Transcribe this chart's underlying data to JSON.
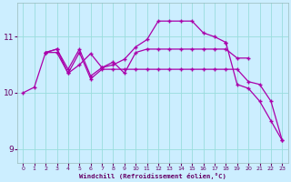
{
  "xlabel": "Windchill (Refroidissement éolien,°C)",
  "bg_color": "#cceeff",
  "grid_color": "#99dddd",
  "line_color": "#aa00aa",
  "xlim": [
    -0.5,
    23.5
  ],
  "ylim": [
    8.75,
    11.6
  ],
  "xticks": [
    0,
    1,
    2,
    3,
    4,
    5,
    6,
    7,
    8,
    9,
    10,
    11,
    12,
    13,
    14,
    15,
    16,
    17,
    18,
    19,
    20,
    21,
    22,
    23
  ],
  "yticks": [
    9,
    10,
    11
  ],
  "lineA_x": [
    0,
    1,
    2,
    3,
    4,
    5,
    6,
    7,
    8,
    9,
    10,
    11,
    12,
    13,
    14,
    15,
    16,
    17,
    18,
    19,
    20,
    21,
    22,
    23
  ],
  "lineA_y": [
    10.0,
    10.1,
    10.72,
    10.72,
    10.35,
    10.72,
    10.25,
    10.42,
    10.42,
    10.42,
    10.42,
    10.42,
    10.42,
    10.42,
    10.42,
    10.42,
    10.42,
    10.42,
    10.42,
    10.42,
    10.2,
    10.15,
    9.85,
    9.15
  ],
  "lineB_x": [
    2,
    3,
    4,
    5,
    6,
    7,
    8,
    9,
    10,
    11,
    12,
    13,
    14,
    15,
    16,
    17,
    18
  ],
  "lineB_y": [
    10.72,
    10.78,
    10.35,
    10.5,
    10.7,
    10.45,
    10.5,
    10.6,
    10.82,
    10.95,
    11.28,
    11.28,
    11.28,
    11.28,
    11.07,
    11.0,
    10.9
  ],
  "lineC_x": [
    2,
    3,
    4,
    5,
    6,
    7,
    8,
    9,
    10,
    11,
    12,
    13,
    14,
    15,
    16,
    17,
    18,
    19,
    20
  ],
  "lineC_y": [
    10.72,
    10.78,
    10.42,
    10.78,
    10.3,
    10.45,
    10.55,
    10.35,
    10.72,
    10.78,
    10.78,
    10.78,
    10.78,
    10.78,
    10.78,
    10.78,
    10.78,
    10.62,
    10.62
  ],
  "lineD_x": [
    18,
    19,
    20,
    21,
    22,
    23
  ],
  "lineD_y": [
    10.9,
    10.15,
    10.08,
    9.85,
    9.5,
    9.15
  ]
}
